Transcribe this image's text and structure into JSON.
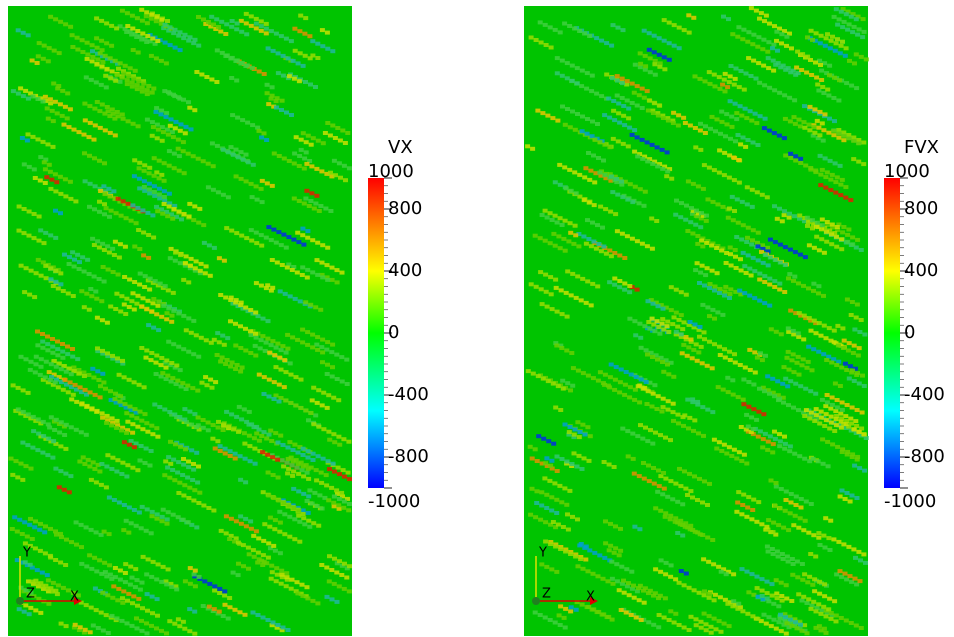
{
  "panels": [
    {
      "colorbar": {
        "title": "VX",
        "range": [
          -1000,
          1000
        ],
        "ticks": [
          1000,
          800,
          400,
          0,
          -400,
          -800,
          -1000
        ]
      },
      "axes": {
        "y": "Y",
        "z": "Z",
        "x": "X"
      }
    },
    {
      "colorbar": {
        "title": "FVX",
        "range": [
          -1000,
          1000
        ],
        "ticks": [
          1000,
          800,
          400,
          0,
          -400,
          -800,
          -1000
        ]
      },
      "axes": {
        "y": "Y",
        "z": "Z",
        "x": "X"
      }
    }
  ]
}
